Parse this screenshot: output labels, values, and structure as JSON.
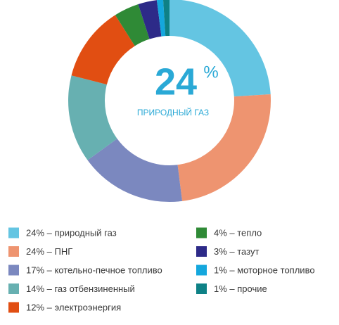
{
  "chart_data": {
    "type": "donut",
    "center_label": "24",
    "center_unit": "%",
    "center_text": "ПРИРОДНЫЙ ГАЗ",
    "categories": [
      "24% – природный газ",
      "24% – ПНГ",
      "17% – котельно-печное топливо",
      "14% – газ отбензиненный",
      "12% – электроэнергия",
      "4% – тепло",
      "3% – тазут",
      "1% – моторное топливо",
      "1% – прочие"
    ],
    "values": [
      24,
      24,
      17,
      14,
      12,
      4,
      3,
      1,
      1
    ],
    "colors": [
      "#64c5e2",
      "#ee9470",
      "#7b88bf",
      "#67b0b1",
      "#e14e12",
      "#2f8a36",
      "#2d2a88",
      "#14a7dd",
      "#0e8186"
    ]
  }
}
